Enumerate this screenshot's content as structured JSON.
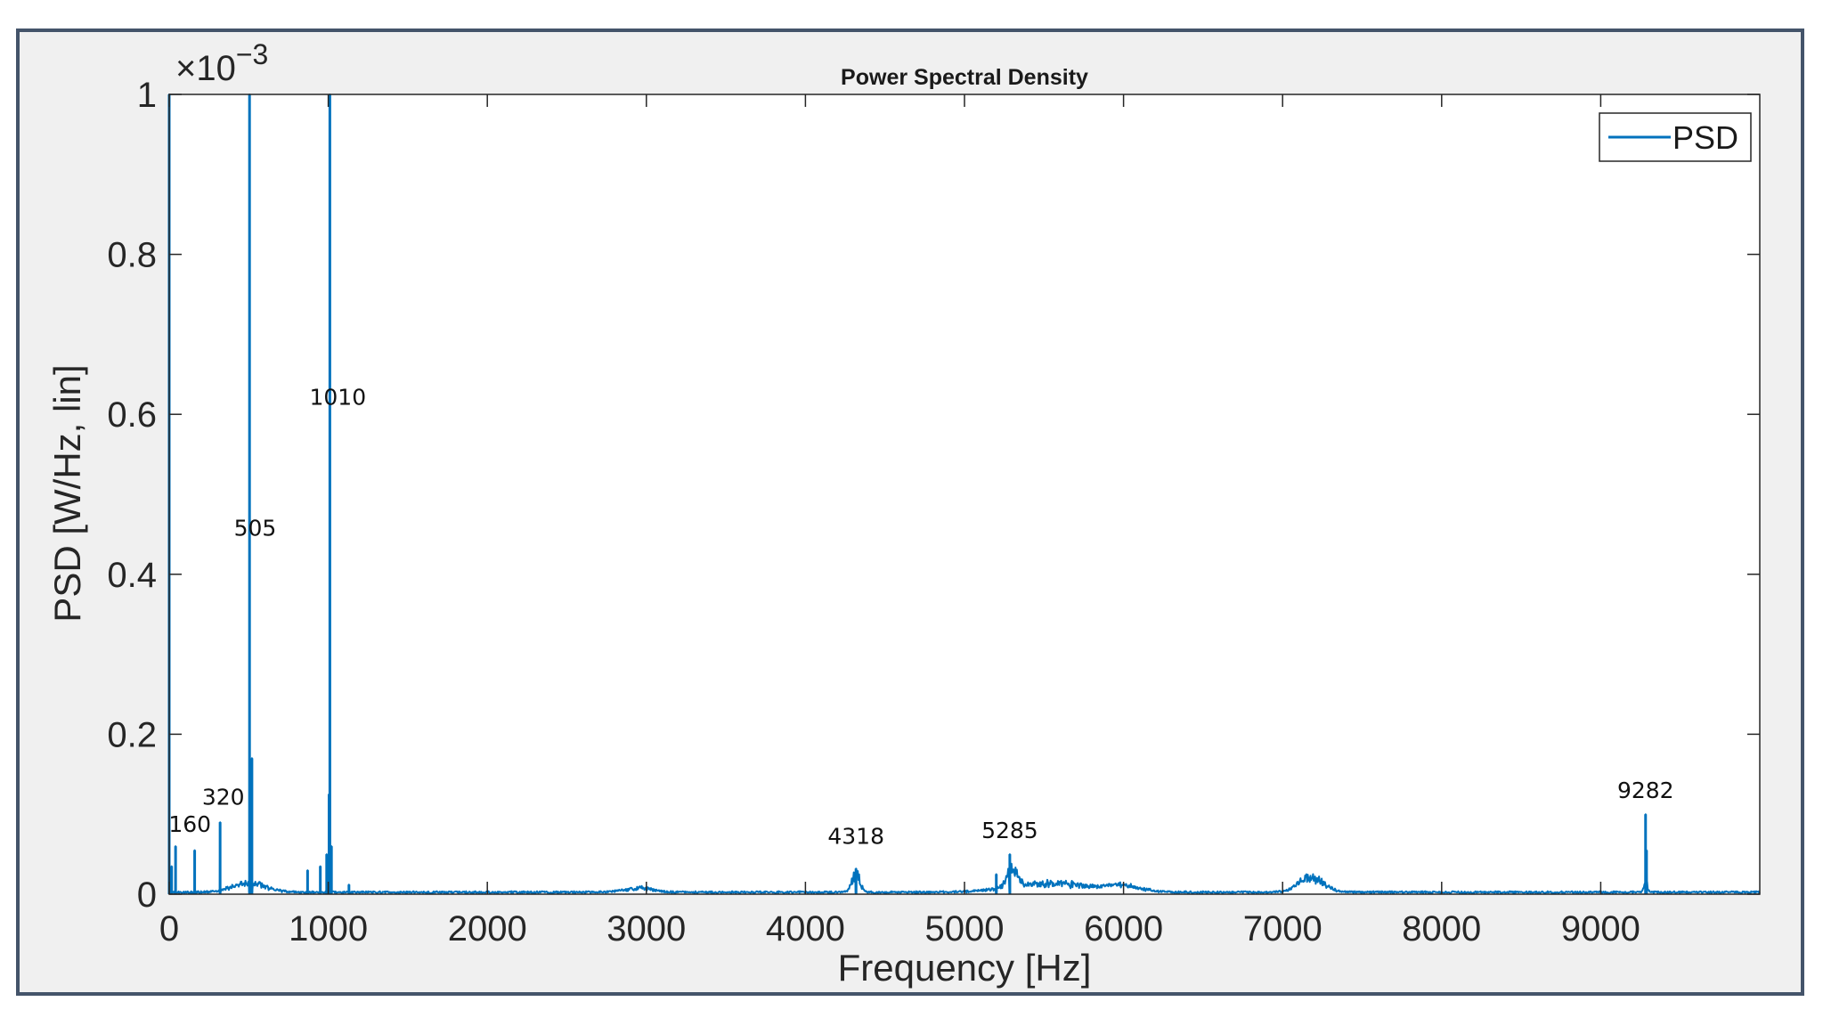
{
  "chart_data": {
    "type": "line",
    "title": "Power Spectral Density",
    "xlabel": "Frequency [Hz]",
    "ylabel": "PSD [W/Hz, lin]",
    "y_exponent_base": "×10",
    "y_exponent_power": "−3",
    "xlim": [
      0,
      10000
    ],
    "ylim": [
      0,
      1
    ],
    "x_ticks": [
      0,
      1000,
      2000,
      3000,
      4000,
      5000,
      6000,
      7000,
      8000,
      9000
    ],
    "x_tick_labels": [
      "0",
      "1000",
      "2000",
      "3000",
      "4000",
      "5000",
      "6000",
      "7000",
      "8000",
      "9000"
    ],
    "y_ticks": [
      0,
      0.2,
      0.4,
      0.6,
      0.8,
      1
    ],
    "y_tick_labels": [
      "0",
      "0.2",
      "0.4",
      "0.6",
      "0.8",
      "1"
    ],
    "grid": false,
    "legend": {
      "position": "top-right",
      "entries": [
        "PSD"
      ]
    },
    "series_color": "#0072bd",
    "series": [
      {
        "name": "PSD",
        "peaks": [
          {
            "x": 0,
            "y": 1.0
          },
          {
            "x": 15,
            "y": 0.035
          },
          {
            "x": 40,
            "y": 0.06
          },
          {
            "x": 160,
            "y": 0.055
          },
          {
            "x": 320,
            "y": 0.09
          },
          {
            "x": 505,
            "y": 1.0
          },
          {
            "x": 520,
            "y": 0.17
          },
          {
            "x": 870,
            "y": 0.03
          },
          {
            "x": 950,
            "y": 0.035
          },
          {
            "x": 990,
            "y": 0.05
          },
          {
            "x": 1005,
            "y": 0.125
          },
          {
            "x": 1010,
            "y": 1.0
          },
          {
            "x": 1020,
            "y": 0.06
          },
          {
            "x": 1130,
            "y": 0.012
          },
          {
            "x": 4318,
            "y": 0.032
          },
          {
            "x": 5200,
            "y": 0.025
          },
          {
            "x": 5285,
            "y": 0.05
          },
          {
            "x": 9282,
            "y": 0.1
          },
          {
            "x": 9288,
            "y": 0.055
          }
        ],
        "humps": [
          {
            "x": 500,
            "width": 150,
            "y": 0.012
          },
          {
            "x": 2950,
            "width": 120,
            "y": 0.006
          },
          {
            "x": 4318,
            "width": 35,
            "y": 0.025
          },
          {
            "x": 5300,
            "width": 50,
            "y": 0.025
          },
          {
            "x": 5550,
            "width": 350,
            "y": 0.012
          },
          {
            "x": 6000,
            "width": 150,
            "y": 0.008
          },
          {
            "x": 7180,
            "width": 110,
            "y": 0.02
          },
          {
            "x": 9282,
            "width": 15,
            "y": 0.02
          }
        ]
      }
    ],
    "annotations": [
      {
        "text": "160",
        "x": 130,
        "y": 0.078
      },
      {
        "text": "320",
        "x": 340,
        "y": 0.112
      },
      {
        "text": "505",
        "x": 540,
        "y": 0.448
      },
      {
        "text": "1010",
        "x": 1060,
        "y": 0.612
      },
      {
        "text": "4318",
        "x": 4318,
        "y": 0.063
      },
      {
        "text": "5285",
        "x": 5285,
        "y": 0.07
      },
      {
        "text": "9282",
        "x": 9282,
        "y": 0.12
      }
    ]
  }
}
